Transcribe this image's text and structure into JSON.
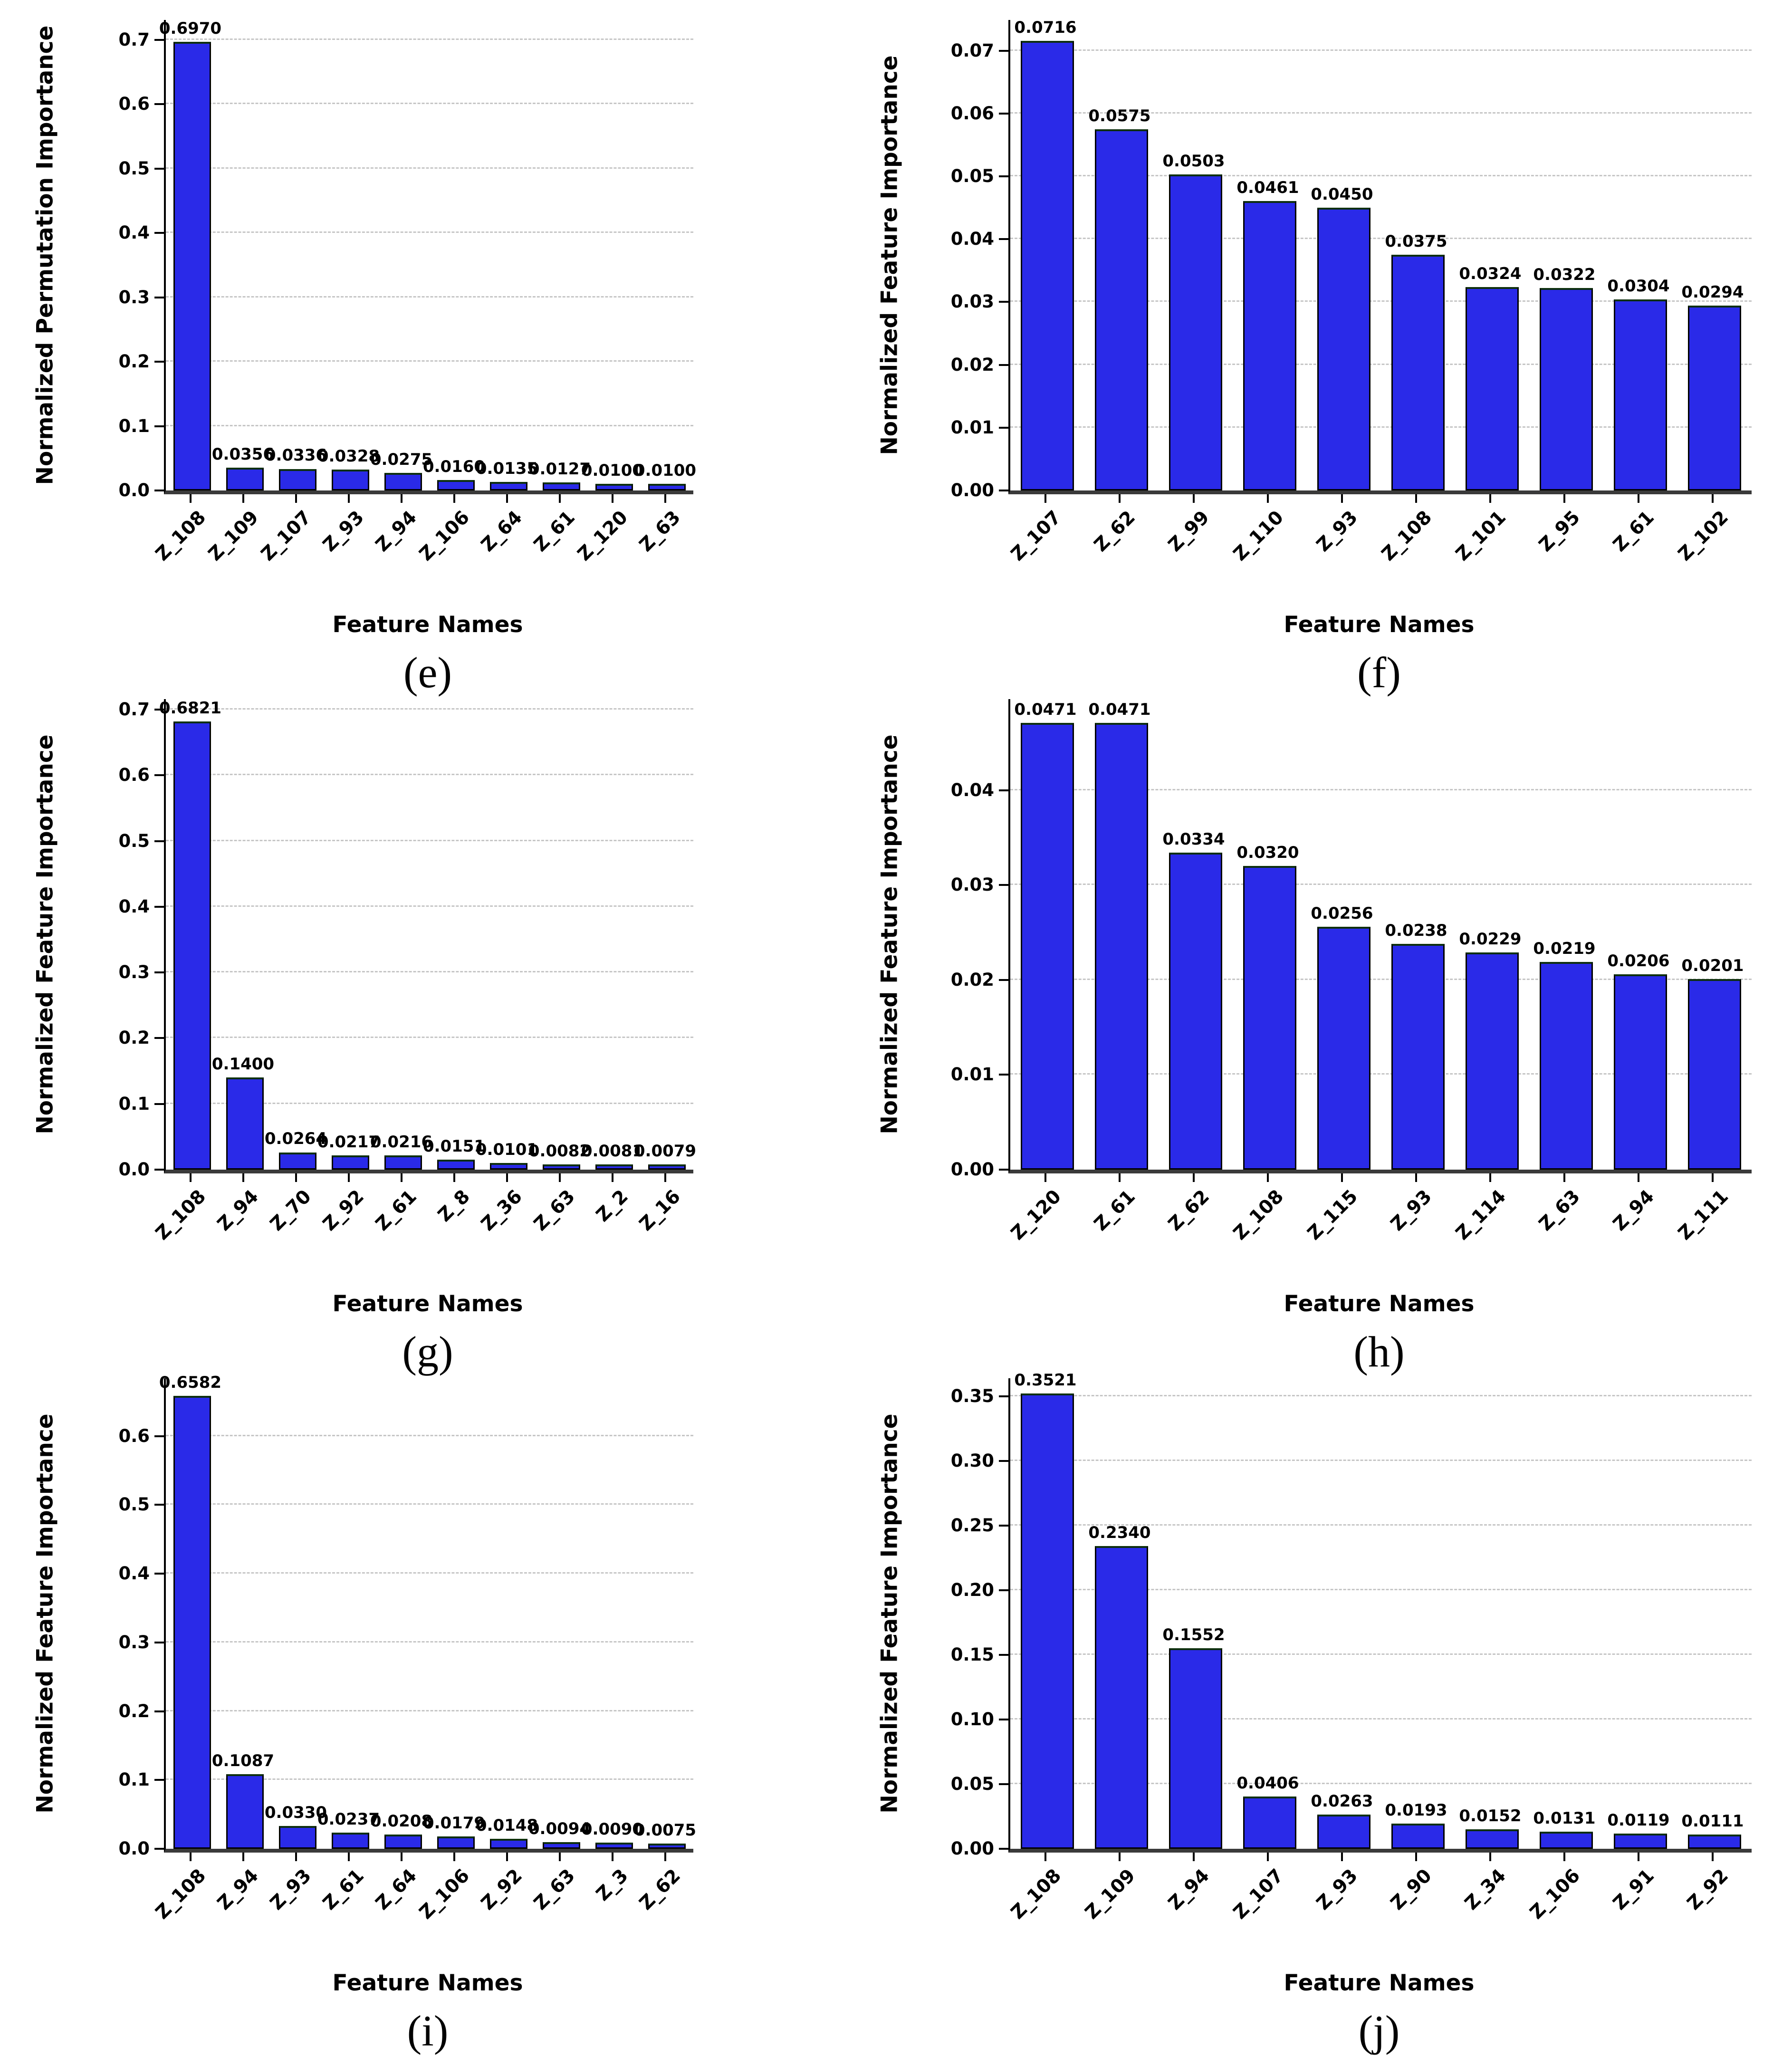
{
  "figure": {
    "background_color": "#ffffff",
    "bar_color": "#2a2ae8",
    "bar_edge_color": "#000000",
    "gridline_color": "#c6c6c6",
    "x_axis_label": "Feature Names"
  },
  "chart_data": [
    {
      "type": "bar",
      "caption": "(e)",
      "xlabel": "Feature Names",
      "ylabel": "Normalized Permutation Importance",
      "categories": [
        "Z_108",
        "Z_109",
        "Z_107",
        "Z_93",
        "Z_94",
        "Z_106",
        "Z_64",
        "Z_61",
        "Z_120",
        "Z_63"
      ],
      "values": [
        0.697,
        0.0356,
        0.0336,
        0.0328,
        0.0275,
        0.016,
        0.0135,
        0.0127,
        0.01,
        0.01
      ],
      "value_labels": [
        "0.6970",
        "0.0356",
        "0.0336",
        "0.0328",
        "0.0275",
        "0.0160",
        "0.0135",
        "0.0127",
        "0.0100",
        "0.0100"
      ],
      "yticks": [
        0.0,
        0.1,
        0.2,
        0.3,
        0.4,
        0.5,
        0.6,
        0.7
      ],
      "ytick_labels": [
        "0.0",
        "0.1",
        "0.2",
        "0.3",
        "0.4",
        "0.5",
        "0.6",
        "0.7"
      ],
      "ylim": [
        0,
        0.731
      ],
      "grid": true,
      "legend": null
    },
    {
      "type": "bar",
      "caption": "(f)",
      "xlabel": "Feature Names",
      "ylabel": "Normalized Feature Importance",
      "categories": [
        "Z_107",
        "Z_62",
        "Z_99",
        "Z_110",
        "Z_93",
        "Z_108",
        "Z_101",
        "Z_95",
        "Z_61",
        "Z_102"
      ],
      "values": [
        0.0716,
        0.0575,
        0.0503,
        0.0461,
        0.045,
        0.0375,
        0.0324,
        0.0322,
        0.0304,
        0.0294
      ],
      "value_labels": [
        "0.0716",
        "0.0575",
        "0.0503",
        "0.0461",
        "0.0450",
        "0.0375",
        "0.0324",
        "0.0322",
        "0.0304",
        "0.0294"
      ],
      "yticks": [
        0.0,
        0.01,
        0.02,
        0.03,
        0.04,
        0.05,
        0.06,
        0.07
      ],
      "ytick_labels": [
        "0.00",
        "0.01",
        "0.02",
        "0.03",
        "0.04",
        "0.05",
        "0.06",
        "0.07"
      ],
      "ylim": [
        0,
        0.0749
      ],
      "grid": true,
      "legend": null
    },
    {
      "type": "bar",
      "caption": "(g)",
      "xlabel": "Feature Names",
      "ylabel": "Normalized Feature Importance",
      "categories": [
        "Z_108",
        "Z_94",
        "Z_70",
        "Z_92",
        "Z_61",
        "Z_8",
        "Z_36",
        "Z_63",
        "Z_2",
        "Z_16"
      ],
      "values": [
        0.6821,
        0.14,
        0.0264,
        0.0217,
        0.0216,
        0.0151,
        0.0101,
        0.0082,
        0.0081,
        0.0079
      ],
      "value_labels": [
        "0.6821",
        "0.1400",
        "0.0264",
        "0.0217",
        "0.0216",
        "0.0151",
        "0.0101",
        "0.0082",
        "0.0081",
        "0.0079"
      ],
      "yticks": [
        0.0,
        0.1,
        0.2,
        0.3,
        0.4,
        0.5,
        0.6,
        0.7
      ],
      "ytick_labels": [
        "0.0",
        "0.1",
        "0.2",
        "0.3",
        "0.4",
        "0.5",
        "0.6",
        "0.7"
      ],
      "ylim": [
        0,
        0.716
      ],
      "grid": true,
      "legend": null
    },
    {
      "type": "bar",
      "caption": "(h)",
      "xlabel": "Feature Names",
      "ylabel": "Normalized Feature Importance",
      "categories": [
        "Z_120",
        "Z_61",
        "Z_62",
        "Z_108",
        "Z_115",
        "Z_93",
        "Z_114",
        "Z_63",
        "Z_94",
        "Z_111"
      ],
      "values": [
        0.0471,
        0.0471,
        0.0334,
        0.032,
        0.0256,
        0.0238,
        0.0229,
        0.0219,
        0.0206,
        0.0201
      ],
      "value_labels": [
        "0.0471",
        "0.0471",
        "0.0334",
        "0.0320",
        "0.0256",
        "0.0238",
        "0.0229",
        "0.0219",
        "0.0206",
        "0.0201"
      ],
      "yticks": [
        0.0,
        0.01,
        0.02,
        0.03,
        0.04
      ],
      "ytick_labels": [
        "0.00",
        "0.01",
        "0.02",
        "0.03",
        "0.04"
      ],
      "ylim": [
        0,
        0.0496
      ],
      "grid": true,
      "legend": null
    },
    {
      "type": "bar",
      "caption": "(i)",
      "xlabel": "Feature Names",
      "ylabel": "Normalized Feature Importance",
      "categories": [
        "Z_108",
        "Z_94",
        "Z_93",
        "Z_61",
        "Z_64",
        "Z_106",
        "Z_92",
        "Z_63",
        "Z_3",
        "Z_62"
      ],
      "values": [
        0.6582,
        0.1087,
        0.033,
        0.0237,
        0.0208,
        0.0179,
        0.0148,
        0.0094,
        0.009,
        0.0075
      ],
      "value_labels": [
        "0.6582",
        "0.1087",
        "0.0330",
        "0.0237",
        "0.0208",
        "0.0179",
        "0.0148",
        "0.0094",
        "0.0090",
        "0.0075"
      ],
      "yticks": [
        0.0,
        0.1,
        0.2,
        0.3,
        0.4,
        0.5,
        0.6
      ],
      "ytick_labels": [
        "0.0",
        "0.1",
        "0.2",
        "0.3",
        "0.4",
        "0.5",
        "0.6"
      ],
      "ylim": [
        0,
        0.684
      ],
      "grid": true,
      "legend": null
    },
    {
      "type": "bar",
      "caption": "(j)",
      "xlabel": "Feature Names",
      "ylabel": "Normalized Feature Importance",
      "categories": [
        "Z_108",
        "Z_109",
        "Z_94",
        "Z_107",
        "Z_93",
        "Z_90",
        "Z_34",
        "Z_106",
        "Z_91",
        "Z_92"
      ],
      "values": [
        0.3521,
        0.234,
        0.1552,
        0.0406,
        0.0263,
        0.0193,
        0.0152,
        0.0131,
        0.0119,
        0.0111
      ],
      "value_labels": [
        "0.3521",
        "0.2340",
        "0.1552",
        "0.0406",
        "0.0263",
        "0.0193",
        "0.0152",
        "0.0131",
        "0.0119",
        "0.0111"
      ],
      "yticks": [
        0.0,
        0.05,
        0.1,
        0.15,
        0.2,
        0.25,
        0.3,
        0.35
      ],
      "ytick_labels": [
        "0.00",
        "0.05",
        "0.10",
        "0.15",
        "0.20",
        "0.25",
        "0.30",
        "0.35"
      ],
      "ylim": [
        0,
        0.3638
      ],
      "grid": true,
      "legend": null
    }
  ]
}
